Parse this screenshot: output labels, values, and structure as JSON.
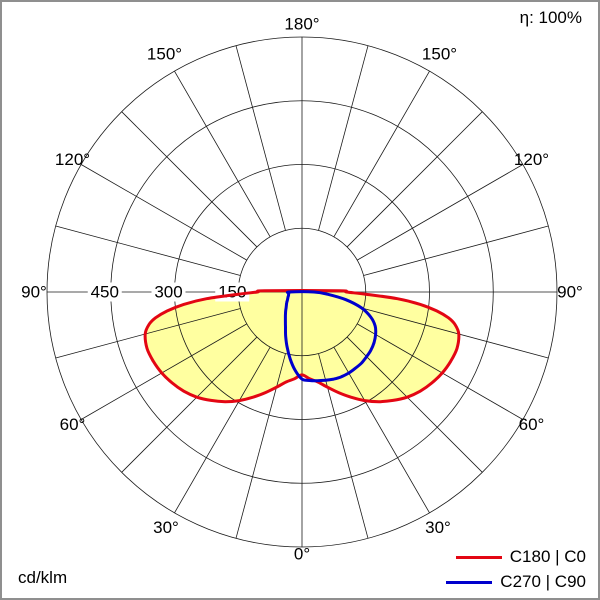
{
  "header": {
    "efficiency": "η: 100%"
  },
  "footer": {
    "unit": "cd/klm"
  },
  "legend": {
    "items": [
      {
        "label": "C180 | C0",
        "color": "#e30613"
      },
      {
        "label": "C270 | C90",
        "color": "#0000cd"
      }
    ]
  },
  "chart_data": {
    "type": "line",
    "subtype": "polar-photometric-intensity-diagram",
    "units": "cd/klm",
    "efficiency_label": "η: 100%",
    "angular_axis": {
      "zero_position": "bottom",
      "step_deg": 15,
      "label_step_deg": 30,
      "labels": [
        "0°",
        "30°",
        "60°",
        "90°",
        "120°",
        "150°",
        "180°"
      ]
    },
    "radial_axis": {
      "max": 600,
      "ticks": [
        150,
        300,
        450,
        600
      ],
      "labeled_ticks": [
        "450",
        "300",
        "150"
      ]
    },
    "series": [
      {
        "name": "C180 | C0",
        "color": "#e30613",
        "fill": "#ffffa0",
        "left_plane": "C180",
        "right_plane": "C0",
        "left_points": [
          [
            0,
            195
          ],
          [
            5,
            205
          ],
          [
            10,
            215
          ],
          [
            15,
            232
          ],
          [
            20,
            252
          ],
          [
            25,
            273
          ],
          [
            30,
            295
          ],
          [
            35,
            315
          ],
          [
            40,
            333
          ],
          [
            45,
            350
          ],
          [
            50,
            363
          ],
          [
            55,
            373
          ],
          [
            60,
            381
          ],
          [
            65,
            386
          ],
          [
            70,
            388
          ],
          [
            75,
            382
          ],
          [
            78,
            368
          ],
          [
            80,
            350
          ],
          [
            82,
            320
          ],
          [
            84,
            280
          ],
          [
            86,
            225
          ],
          [
            88,
            150
          ],
          [
            90,
            105
          ],
          [
            92,
            88
          ]
        ],
        "right_points": [
          [
            0,
            195
          ],
          [
            5,
            205
          ],
          [
            10,
            215
          ],
          [
            15,
            232
          ],
          [
            20,
            252
          ],
          [
            25,
            273
          ],
          [
            30,
            295
          ],
          [
            35,
            315
          ],
          [
            40,
            333
          ],
          [
            45,
            350
          ],
          [
            50,
            363
          ],
          [
            55,
            373
          ],
          [
            60,
            381
          ],
          [
            65,
            386
          ],
          [
            70,
            388
          ],
          [
            75,
            382
          ],
          [
            78,
            368
          ],
          [
            80,
            350
          ],
          [
            82,
            320
          ],
          [
            84,
            280
          ],
          [
            86,
            225
          ],
          [
            88,
            150
          ],
          [
            90,
            105
          ],
          [
            92,
            88
          ]
        ]
      },
      {
        "name": "C270 | C90",
        "color": "#0000cd",
        "fill": null,
        "left_plane": "C270",
        "right_plane": "C90",
        "left_points": [
          [
            0,
            205
          ],
          [
            5,
            185
          ],
          [
            10,
            160
          ],
          [
            15,
            135
          ],
          [
            20,
            112
          ],
          [
            25,
            92
          ],
          [
            30,
            78
          ],
          [
            35,
            68
          ],
          [
            40,
            60
          ],
          [
            45,
            53
          ],
          [
            50,
            48
          ],
          [
            55,
            44
          ],
          [
            60,
            40
          ],
          [
            65,
            37
          ],
          [
            70,
            35
          ],
          [
            75,
            33
          ],
          [
            80,
            32
          ],
          [
            85,
            31
          ],
          [
            90,
            30
          ]
        ],
        "right_points": [
          [
            0,
            205
          ],
          [
            5,
            209
          ],
          [
            10,
            212
          ],
          [
            15,
            215
          ],
          [
            20,
            218
          ],
          [
            25,
            220
          ],
          [
            30,
            220
          ],
          [
            35,
            219
          ],
          [
            40,
            218
          ],
          [
            45,
            215
          ],
          [
            50,
            212
          ],
          [
            55,
            207
          ],
          [
            60,
            200
          ],
          [
            65,
            190
          ],
          [
            70,
            172
          ],
          [
            75,
            145
          ],
          [
            80,
            105
          ],
          [
            85,
            60
          ],
          [
            90,
            28
          ]
        ]
      }
    ]
  }
}
